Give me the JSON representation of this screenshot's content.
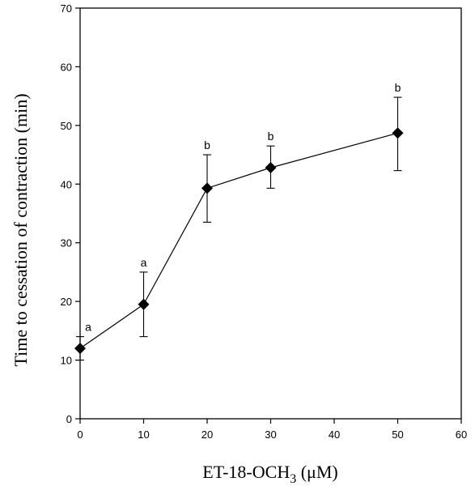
{
  "chart_data": {
    "type": "line",
    "xlabel_main": "ET-18-OCH",
    "xlabel_sub": "3",
    "xlabel_unit": " (μM)",
    "ylabel": "Time to cessation of contraction (min)",
    "xlim": [
      0,
      60
    ],
    "ylim": [
      0,
      70
    ],
    "xticks": [
      0,
      10,
      20,
      30,
      40,
      50,
      60
    ],
    "yticks": [
      0,
      10,
      20,
      30,
      40,
      50,
      60,
      70
    ],
    "grid": false,
    "series": [
      {
        "marker": "diamond",
        "color": "#000000",
        "points": [
          {
            "x": 0,
            "y": 12,
            "err_low": 10,
            "err_high": 14,
            "label": "a"
          },
          {
            "x": 10,
            "y": 19.5,
            "err_low": 14,
            "err_high": 25,
            "label": "a"
          },
          {
            "x": 20,
            "y": 39.3,
            "err_low": 33.5,
            "err_high": 45,
            "label": "b"
          },
          {
            "x": 30,
            "y": 42.8,
            "err_low": 39.3,
            "err_high": 46.5,
            "label": "b"
          },
          {
            "x": 50,
            "y": 48.7,
            "err_low": 42.3,
            "err_high": 54.8,
            "label": "b"
          }
        ]
      }
    ]
  }
}
